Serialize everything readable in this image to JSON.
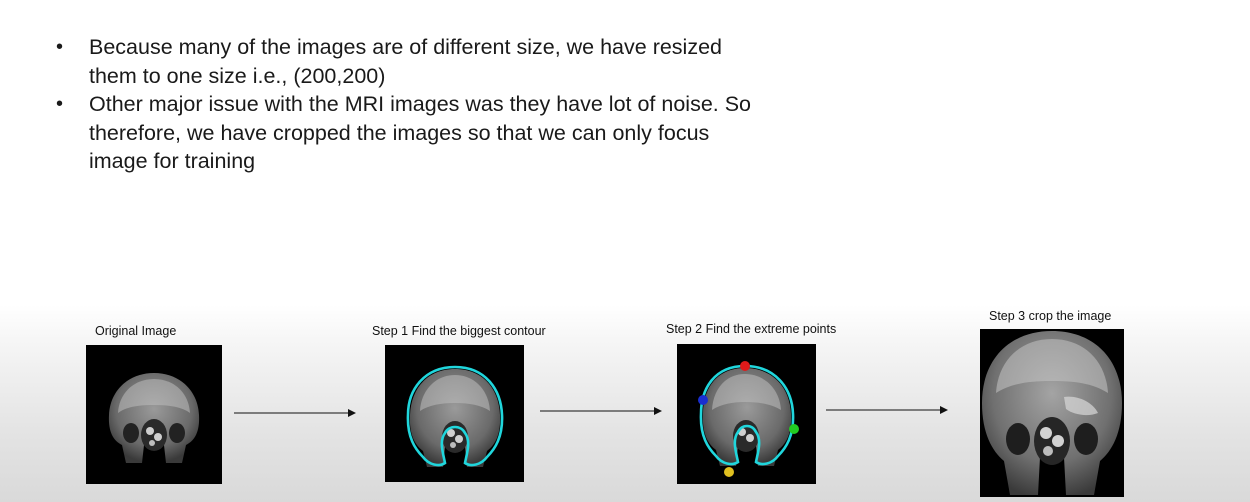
{
  "bullets": [
    "Because many of the images are of different size, we have resized them to one size i.e., (200,200)",
    "Other major issue with the MRI images was they have lot of noise. So therefore, we have cropped the images so that we can only focus image for training"
  ],
  "steps": {
    "original": "Original Image",
    "step1": "Step 1 Find the biggest contour",
    "step2": "Step 2 Find the extreme points",
    "step3": "Step 3 crop the image"
  },
  "colors": {
    "contour": "#20d6dc",
    "point_top": "#e01a1a",
    "point_left": "#1a2fd0",
    "point_right": "#22cc22",
    "point_bottom": "#e0c020"
  }
}
